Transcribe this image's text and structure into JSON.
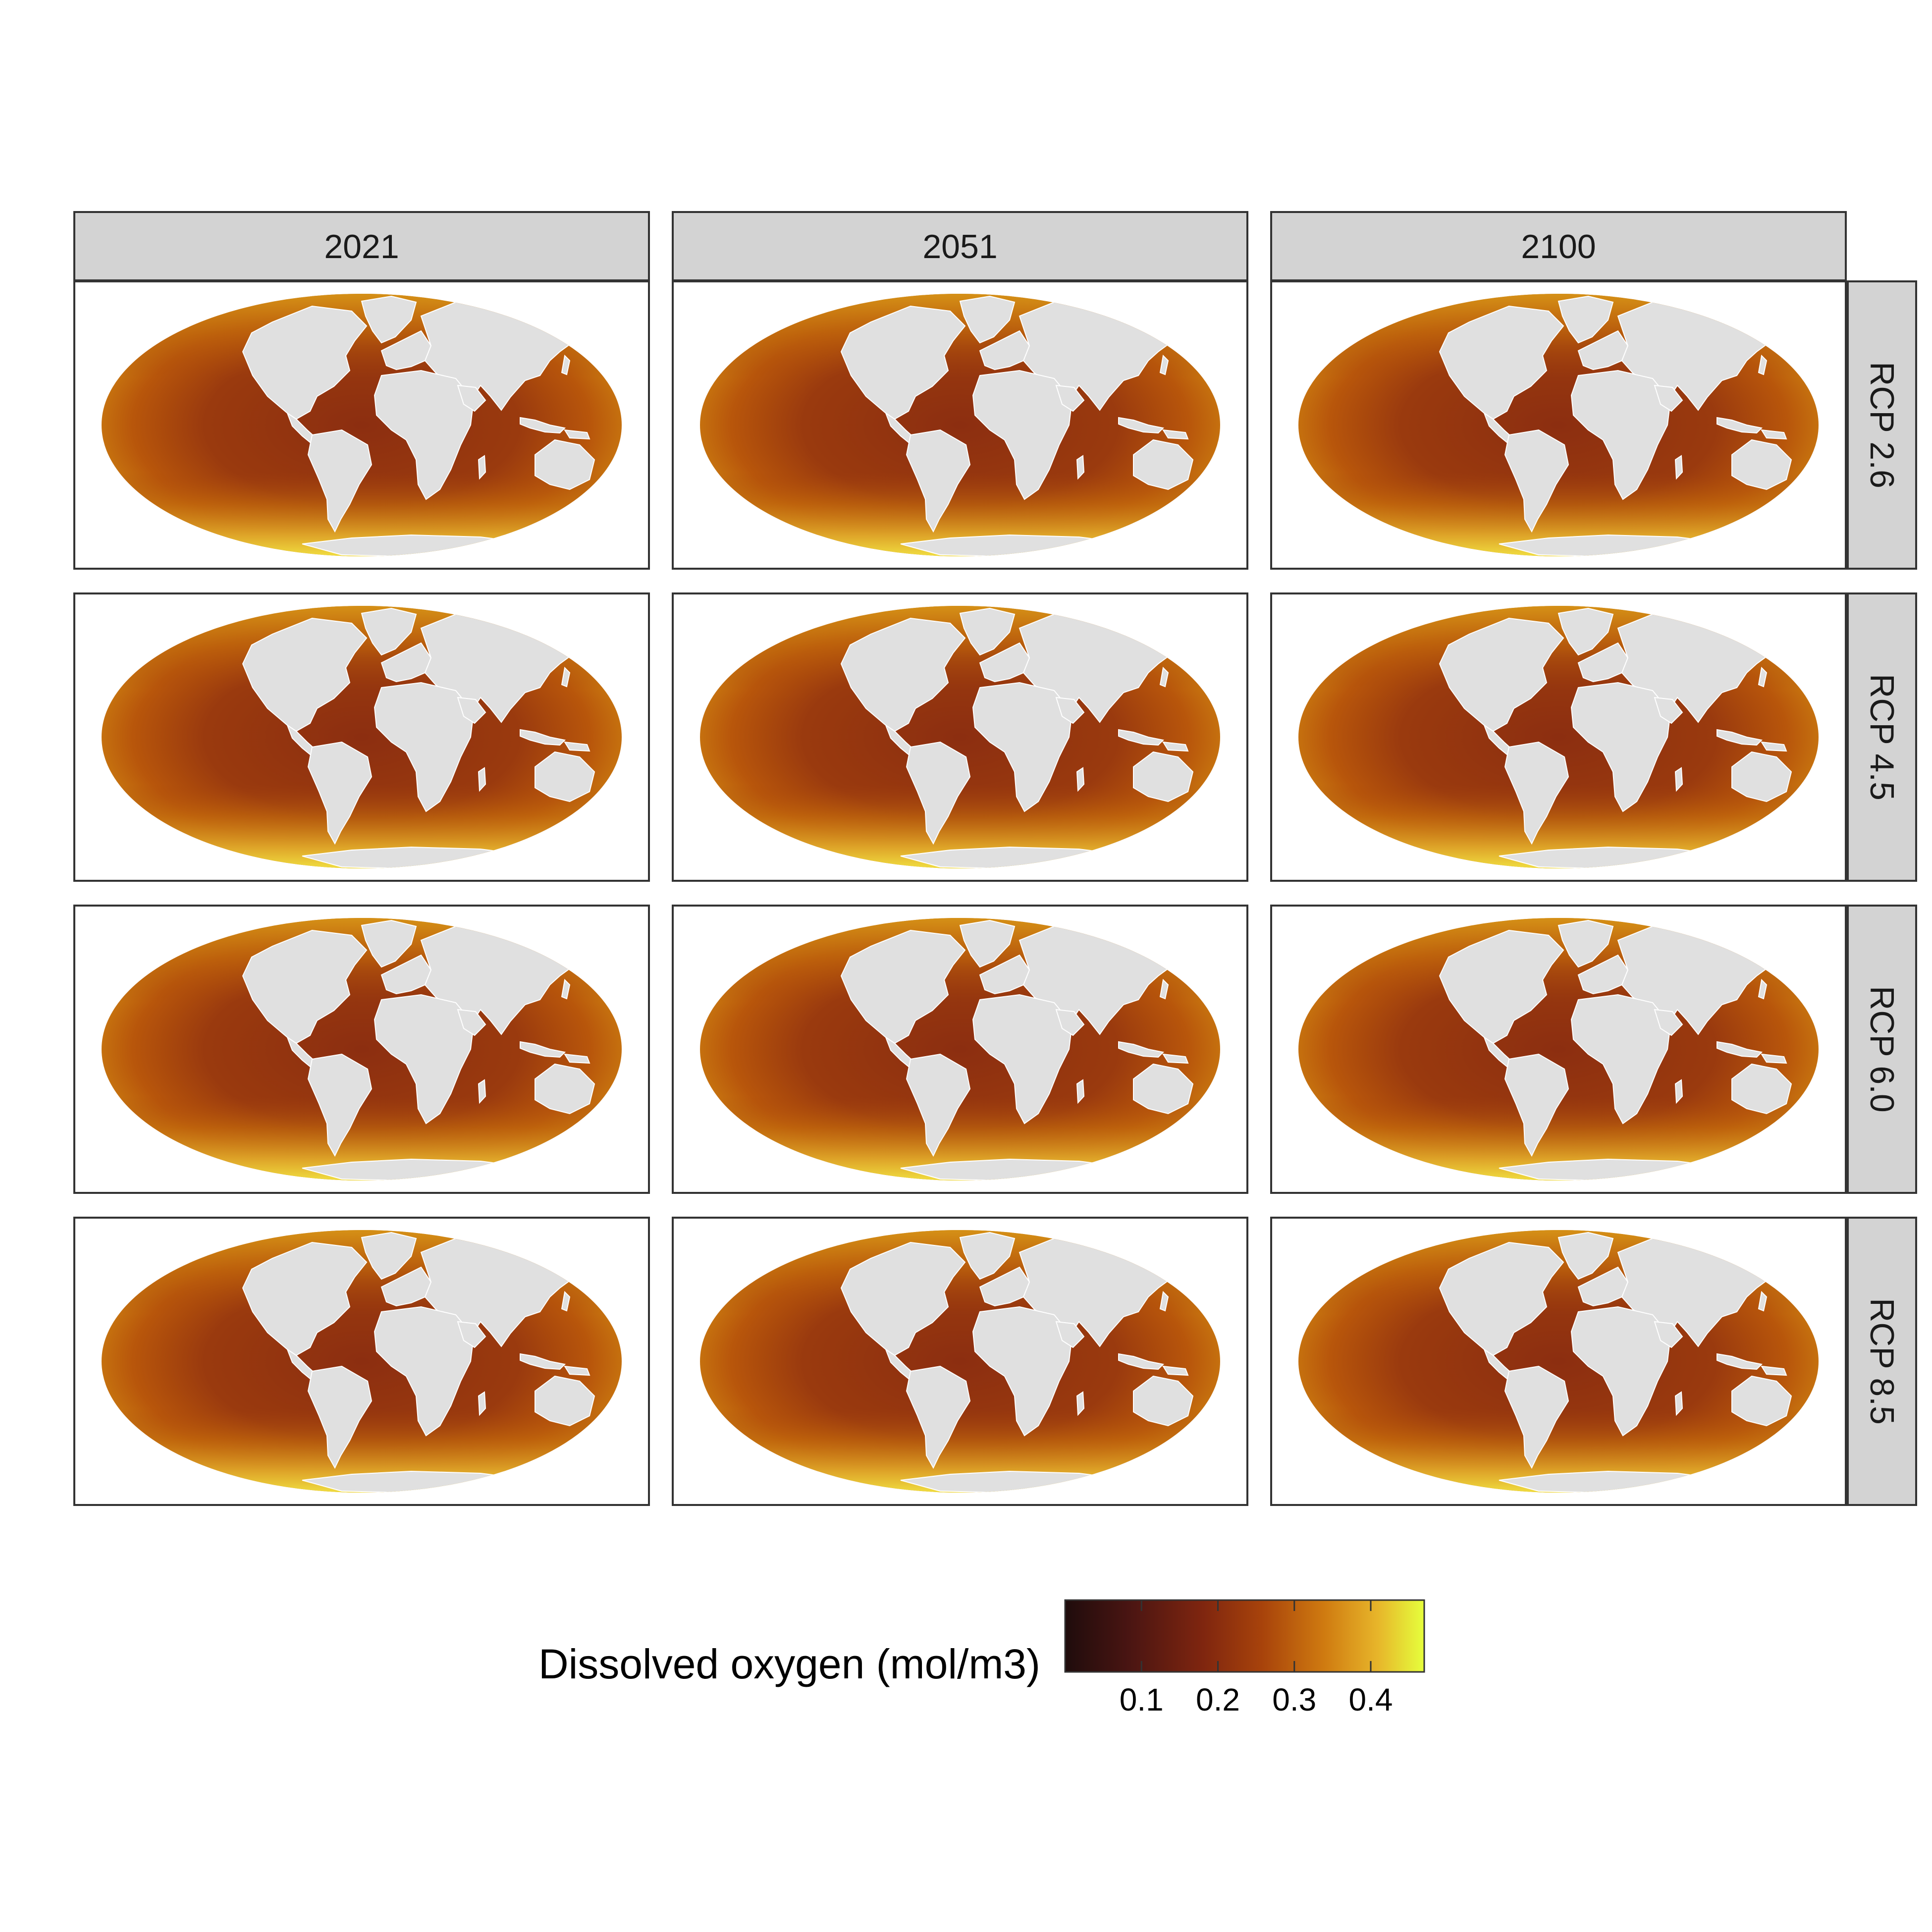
{
  "figure": {
    "columns": [
      "2021",
      "2051",
      "2100"
    ],
    "rows": [
      "RCP 2.6",
      "RCP 4.5",
      "RCP 6.0",
      "RCP 8.5"
    ],
    "projection": "mollweide",
    "colors": {
      "strip_fill": "#d3d3d3",
      "panel_border": "#333333",
      "land": "#e0e0e0",
      "land_border": "#ffffff"
    }
  },
  "legend": {
    "title": "Dissolved oxygen (mol/m3)",
    "ticks": [
      {
        "value": 0.1,
        "label": "0.1"
      },
      {
        "value": 0.2,
        "label": "0.2"
      },
      {
        "value": 0.3,
        "label": "0.3"
      },
      {
        "value": 0.4,
        "label": "0.4"
      }
    ],
    "range": [
      0.0,
      0.47
    ],
    "palette": [
      "#1f0c0c",
      "#5c1a12",
      "#8a2d0f",
      "#b34d0a",
      "#d98a12",
      "#f0c32a",
      "#e6ff3c"
    ]
  }
}
